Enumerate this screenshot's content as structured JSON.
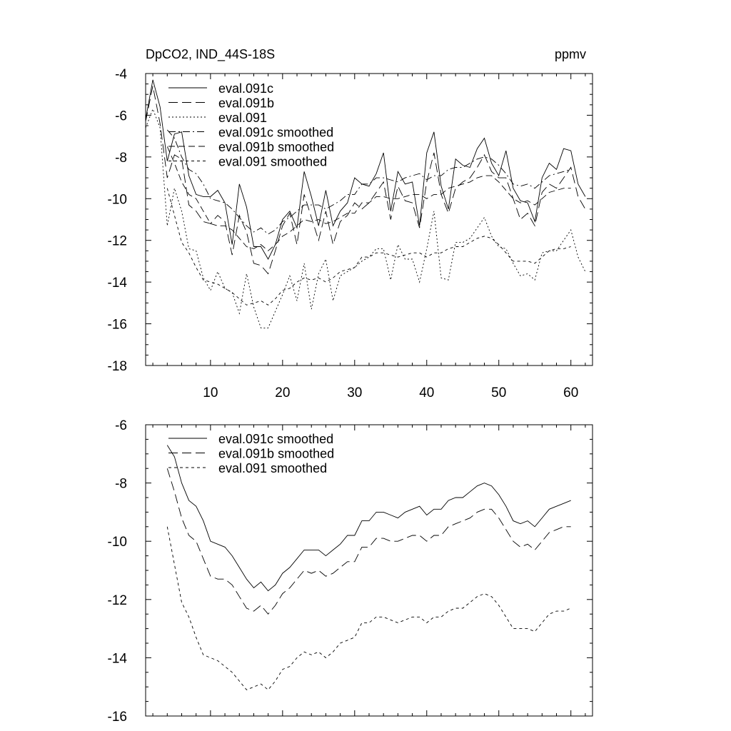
{
  "figure": {
    "title_left": "DpCO2, IND_44S-18S",
    "title_right": "ppmv"
  },
  "chart_data": [
    {
      "type": "line",
      "xlim": [
        1,
        63
      ],
      "ylim": [
        -18,
        -4
      ],
      "xticks": [
        10,
        20,
        30,
        40,
        50,
        60
      ],
      "yticks": [
        -18,
        -16,
        -14,
        -12,
        -10,
        -8,
        -6,
        -4
      ],
      "legend_position": "top-left",
      "series": [
        {
          "name": "eval.091c",
          "dash": "solid",
          "x": [
            1,
            2,
            3,
            4,
            5,
            6,
            7,
            8,
            9,
            10,
            11,
            12,
            13,
            14,
            15,
            16,
            17,
            18,
            19,
            20,
            21,
            22,
            23,
            24,
            25,
            26,
            27,
            28,
            29,
            30,
            31,
            32,
            33,
            34,
            35,
            36,
            37,
            38,
            39,
            40,
            41,
            42,
            43,
            44,
            45,
            46,
            47,
            48,
            49,
            50,
            51,
            52,
            53,
            54,
            55,
            56,
            57,
            58,
            59,
            60,
            61,
            62
          ],
          "values": [
            -6.2,
            -4.3,
            -5.6,
            -8.2,
            -6.9,
            -6.8,
            -8.9,
            -9.8,
            -9.9,
            -9.9,
            -9.6,
            -10.2,
            -12.2,
            -9.3,
            -10.4,
            -12.3,
            -12.3,
            -12.9,
            -12.2,
            -11.0,
            -10.6,
            -11.4,
            -8.7,
            -9.9,
            -11.3,
            -9.6,
            -11.3,
            -10.6,
            -10.2,
            -9.0,
            -9.3,
            -9.4,
            -8.8,
            -7.8,
            -10.6,
            -8.7,
            -9.3,
            -9.2,
            -11.3,
            -7.8,
            -6.8,
            -9.4,
            -10.5,
            -8.1,
            -8.4,
            -8.5,
            -7.6,
            -7.1,
            -8.3,
            -8.9,
            -7.7,
            -9.5,
            -10.1,
            -10.2,
            -11.1,
            -9.0,
            -8.3,
            -8.6,
            -7.6,
            -7.7,
            -9.3,
            -9.9
          ]
        },
        {
          "name": "eval.091b",
          "dash": "long",
          "x": [
            1,
            2,
            3,
            4,
            5,
            6,
            7,
            8,
            9,
            10,
            11,
            12,
            13,
            14,
            15,
            16,
            17,
            18,
            19,
            20,
            21,
            22,
            23,
            24,
            25,
            26,
            27,
            28,
            29,
            30,
            31,
            32,
            33,
            34,
            35,
            36,
            37,
            38,
            39,
            40,
            41,
            42,
            43,
            44,
            45,
            46,
            47,
            48,
            49,
            50,
            51,
            52,
            53,
            54,
            55,
            56,
            57,
            58,
            59,
            60,
            61,
            62
          ],
          "values": [
            -6.3,
            -4.6,
            -6.4,
            -9.0,
            -7.9,
            -8.1,
            -10.3,
            -10.6,
            -11.1,
            -11.2,
            -10.8,
            -11.1,
            -12.7,
            -10.8,
            -11.6,
            -13.1,
            -13.2,
            -13.6,
            -12.5,
            -11.3,
            -10.7,
            -12.2,
            -9.8,
            -10.9,
            -12.0,
            -10.6,
            -12.2,
            -11.1,
            -10.8,
            -10.2,
            -10.5,
            -10.2,
            -9.7,
            -9.2,
            -11.0,
            -9.4,
            -10.1,
            -10.2,
            -11.4,
            -9.2,
            -7.8,
            -9.8,
            -10.7,
            -9.5,
            -9.2,
            -9.0,
            -8.5,
            -7.9,
            -8.7,
            -9.0,
            -9.0,
            -10.0,
            -11.0,
            -10.7,
            -11.3,
            -9.7,
            -9.3,
            -9.5,
            -9.0,
            -8.5,
            -9.9,
            -10.5
          ]
        },
        {
          "name": "eval.091",
          "dash": "dot",
          "x": [
            1,
            2,
            3,
            4,
            5,
            6,
            7,
            8,
            9,
            10,
            11,
            12,
            13,
            14,
            15,
            16,
            17,
            18,
            19,
            20,
            21,
            22,
            23,
            24,
            25,
            26,
            27,
            28,
            29,
            30,
            31,
            32,
            33,
            34,
            35,
            36,
            37,
            38,
            39,
            40,
            41,
            42,
            43,
            44,
            45,
            46,
            47,
            48,
            49,
            50,
            51,
            52,
            53,
            54,
            55,
            56,
            57,
            58,
            59,
            60,
            61,
            62
          ],
          "values": [
            -6.6,
            -5.7,
            -6.6,
            -11.3,
            -9.5,
            -10.6,
            -12.4,
            -12.5,
            -13.8,
            -14.4,
            -13.5,
            -14.3,
            -14.5,
            -15.5,
            -13.6,
            -15.2,
            -16.2,
            -16.2,
            -15.4,
            -14.6,
            -13.7,
            -14.9,
            -13.1,
            -15.3,
            -13.6,
            -12.9,
            -14.9,
            -13.7,
            -13.5,
            -13.3,
            -13.0,
            -12.8,
            -12.4,
            -12.4,
            -13.9,
            -12.2,
            -12.9,
            -12.9,
            -14.0,
            -12.4,
            -10.6,
            -13.8,
            -13.9,
            -12.1,
            -12.1,
            -11.9,
            -11.4,
            -10.9,
            -11.8,
            -12.3,
            -12.4,
            -13.1,
            -13.7,
            -13.6,
            -13.9,
            -12.6,
            -12.5,
            -12.5,
            -12.0,
            -11.5,
            -12.8,
            -13.5
          ]
        },
        {
          "name": "eval.091c smoothed",
          "dash": "dashdot",
          "x": [
            4,
            5,
            6,
            7,
            8,
            9,
            10,
            11,
            12,
            13,
            14,
            15,
            16,
            17,
            18,
            19,
            20,
            21,
            22,
            23,
            24,
            25,
            26,
            27,
            28,
            29,
            30,
            31,
            32,
            33,
            34,
            35,
            36,
            37,
            38,
            39,
            40,
            41,
            42,
            43,
            44,
            45,
            46,
            47,
            48,
            49,
            50,
            51,
            52,
            53,
            54,
            55,
            56,
            57,
            58,
            59,
            60
          ],
          "values": [
            -6.7,
            -7.1,
            -8.0,
            -8.6,
            -8.8,
            -9.3,
            -10.0,
            -10.1,
            -10.2,
            -10.5,
            -10.9,
            -11.3,
            -11.6,
            -11.4,
            -11.7,
            -11.5,
            -11.1,
            -10.9,
            -10.6,
            -10.3,
            -10.3,
            -10.3,
            -10.5,
            -10.3,
            -10.1,
            -9.8,
            -9.8,
            -9.3,
            -9.3,
            -9.0,
            -9.0,
            -9.1,
            -9.2,
            -9.0,
            -8.9,
            -8.8,
            -9.1,
            -8.9,
            -8.9,
            -8.6,
            -8.5,
            -8.5,
            -8.3,
            -8.1,
            -8.0,
            -8.1,
            -8.4,
            -8.8,
            -9.3,
            -9.4,
            -9.3,
            -9.5,
            -9.2,
            -8.9,
            -8.8,
            -8.7,
            -8.6
          ]
        },
        {
          "name": "eval.091b smoothed",
          "dash": "medium",
          "x": [
            4,
            5,
            6,
            7,
            8,
            9,
            10,
            11,
            12,
            13,
            14,
            15,
            16,
            17,
            18,
            19,
            20,
            21,
            22,
            23,
            24,
            25,
            26,
            27,
            28,
            29,
            30,
            31,
            32,
            33,
            34,
            35,
            36,
            37,
            38,
            39,
            40,
            41,
            42,
            43,
            44,
            45,
            46,
            47,
            48,
            49,
            50,
            51,
            52,
            53,
            54,
            55,
            56,
            57,
            58,
            59,
            60
          ],
          "values": [
            -7.5,
            -8.3,
            -9.2,
            -9.8,
            -10.0,
            -10.6,
            -11.2,
            -11.3,
            -11.3,
            -11.5,
            -11.9,
            -12.3,
            -12.4,
            -12.2,
            -12.5,
            -12.2,
            -11.8,
            -11.6,
            -11.3,
            -11.0,
            -11.1,
            -11.0,
            -11.2,
            -11.1,
            -10.9,
            -10.7,
            -10.7,
            -10.2,
            -10.2,
            -9.9,
            -9.9,
            -10.0,
            -10.0,
            -9.9,
            -9.8,
            -9.8,
            -10.0,
            -9.8,
            -9.8,
            -9.5,
            -9.4,
            -9.3,
            -9.2,
            -9.0,
            -8.9,
            -8.9,
            -9.2,
            -9.6,
            -10.0,
            -10.2,
            -10.1,
            -10.3,
            -10.0,
            -9.7,
            -9.6,
            -9.5,
            -9.5
          ]
        },
        {
          "name": "eval.091 smoothed",
          "dash": "short",
          "x": [
            4,
            5,
            6,
            7,
            8,
            9,
            10,
            11,
            12,
            13,
            14,
            15,
            16,
            17,
            18,
            19,
            20,
            21,
            22,
            23,
            24,
            25,
            26,
            27,
            28,
            29,
            30,
            31,
            32,
            33,
            34,
            35,
            36,
            37,
            38,
            39,
            40,
            41,
            42,
            43,
            44,
            45,
            46,
            47,
            48,
            49,
            50,
            51,
            52,
            53,
            54,
            55,
            56,
            57,
            58,
            59,
            60
          ],
          "values": [
            -9.5,
            -10.8,
            -12.1,
            -12.6,
            -13.3,
            -13.9,
            -14.0,
            -14.1,
            -14.3,
            -14.5,
            -14.8,
            -15.1,
            -15.0,
            -14.9,
            -15.1,
            -14.8,
            -14.4,
            -14.3,
            -14.0,
            -13.8,
            -13.9,
            -13.8,
            -14.0,
            -13.8,
            -13.5,
            -13.4,
            -13.3,
            -12.8,
            -12.8,
            -12.6,
            -12.6,
            -12.7,
            -12.8,
            -12.7,
            -12.6,
            -12.6,
            -12.8,
            -12.6,
            -12.6,
            -12.4,
            -12.3,
            -12.3,
            -12.1,
            -11.9,
            -11.8,
            -11.9,
            -12.2,
            -12.6,
            -13.0,
            -13.0,
            -13.0,
            -13.1,
            -12.8,
            -12.5,
            -12.4,
            -12.4,
            -12.3
          ]
        }
      ]
    },
    {
      "type": "line",
      "xlim": [
        1,
        63
      ],
      "ylim": [
        -16,
        -6
      ],
      "xticks": [
        10,
        20,
        30,
        40,
        50,
        60
      ],
      "yticks": [
        -16,
        -14,
        -12,
        -10,
        -8,
        -6
      ],
      "legend_position": "top-left",
      "series_ref": [
        3,
        4,
        5
      ],
      "series": [
        {
          "name": "eval.091c smoothed",
          "dash": "solid"
        },
        {
          "name": "eval.091b smoothed",
          "dash": "long"
        },
        {
          "name": "eval.091 smoothed",
          "dash": "short"
        }
      ]
    }
  ]
}
